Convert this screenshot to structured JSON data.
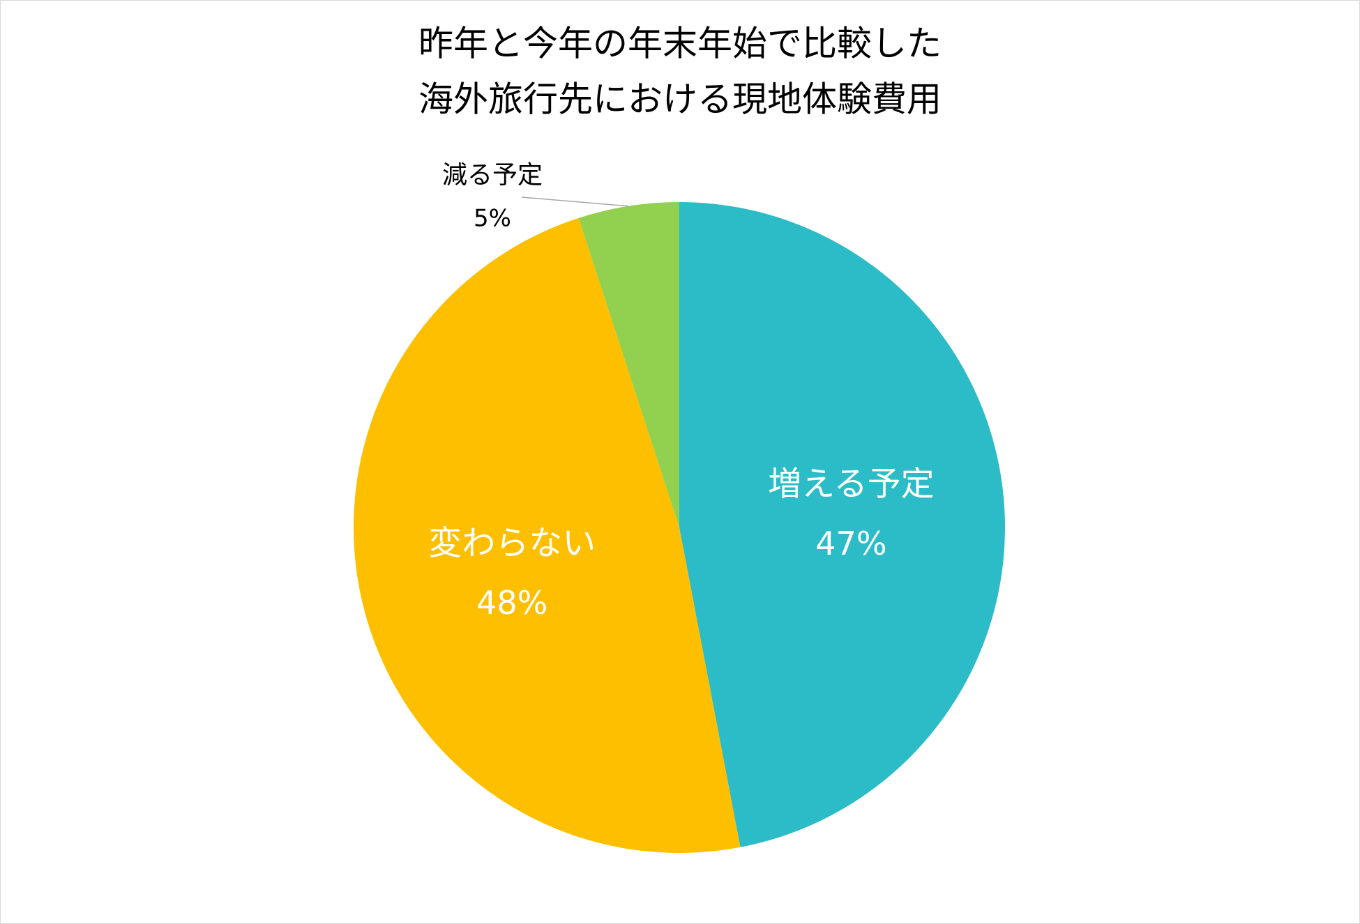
{
  "chart_data": {
    "type": "pie",
    "title": [
      "昨年と今年の年末年始で比較した",
      "海外旅行先における現地体験費用"
    ],
    "categories": [
      "増える予定",
      "変わらない",
      "減る予定"
    ],
    "values": [
      47,
      48,
      5
    ],
    "value_labels": [
      "47%",
      "48%",
      "5%"
    ],
    "colors": [
      "#2bbcc8",
      "#fdbf00",
      "#92d050"
    ]
  }
}
